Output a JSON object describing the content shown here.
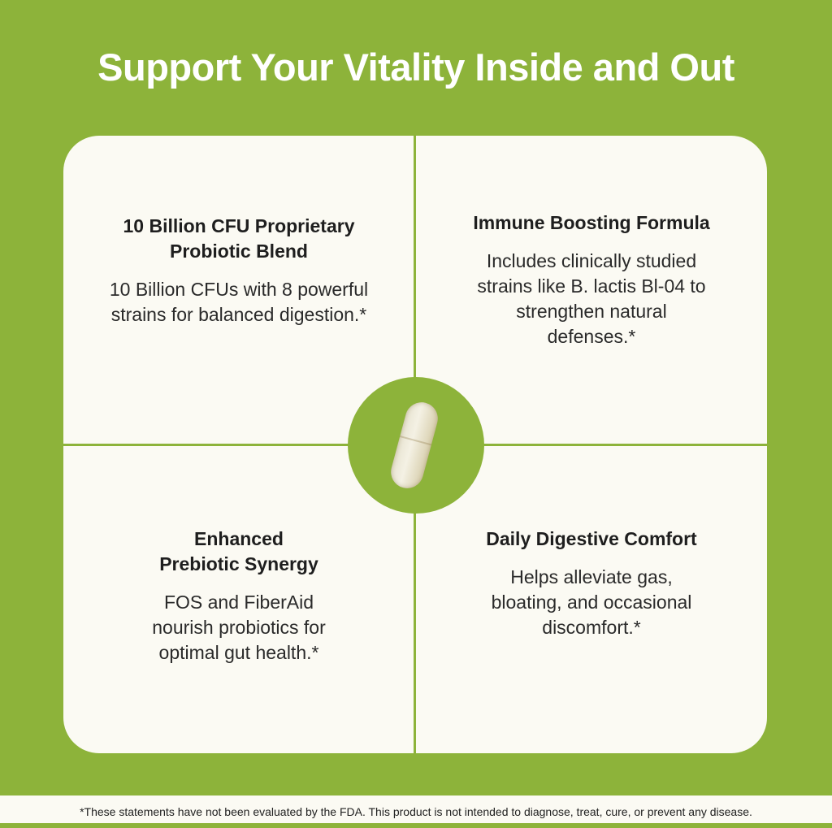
{
  "title": "Support Your Vitality Inside and Out",
  "features": [
    {
      "heading": "10 Billion CFU Proprietary Probiotic Blend",
      "body": "10 Billion CFUs with 8 powerful strains for balanced digestion.*"
    },
    {
      "heading": "Immune Boosting Formula",
      "body": "Includes clinically studied strains like B. lactis Bl-04 to strengthen natural defenses.*"
    },
    {
      "heading": "Enhanced Prebiotic Synergy",
      "body": "FOS and FiberAid nourish probiotics for optimal gut health.*"
    },
    {
      "heading": "Daily Digestive Comfort",
      "body": "Helps alleviate gas, bloating, and occasional discomfort.*"
    }
  ],
  "disclaimer": "*These statements have not been evaluated by the FDA. This product is not intended to diagnose, treat, cure, or prevent any disease.",
  "colors": {
    "brand_green": "#8db33a",
    "card": "#fbfaf3"
  },
  "center_image": "capsule-icon"
}
